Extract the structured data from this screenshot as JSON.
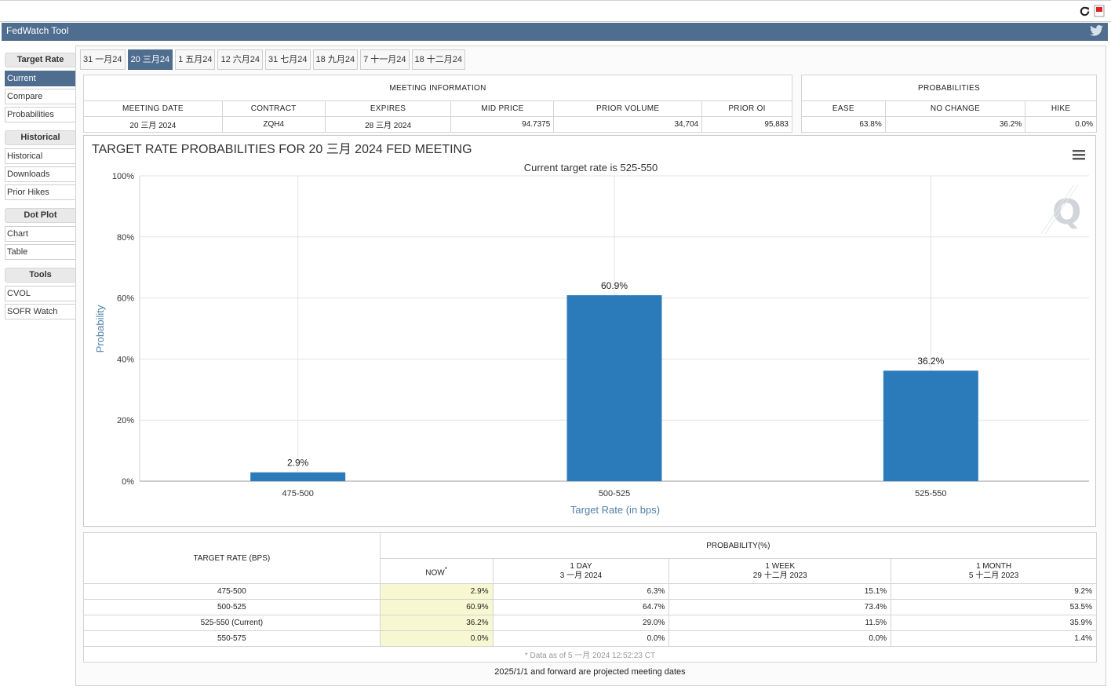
{
  "app": {
    "title": "FedWatch Tool"
  },
  "sidebar": [
    {
      "group": "Target Rate",
      "items": [
        {
          "label": "Current",
          "active": true
        },
        {
          "label": "Compare",
          "active": false
        },
        {
          "label": "Probabilities",
          "active": false
        }
      ]
    },
    {
      "group": "Historical",
      "items": [
        {
          "label": "Historical",
          "active": false
        },
        {
          "label": "Downloads",
          "active": false
        },
        {
          "label": "Prior Hikes",
          "active": false
        }
      ]
    },
    {
      "group": "Dot Plot",
      "items": [
        {
          "label": "Chart",
          "active": false
        },
        {
          "label": "Table",
          "active": false
        }
      ]
    },
    {
      "group": "Tools",
      "items": [
        {
          "label": "CVOL",
          "active": false
        },
        {
          "label": "SOFR Watch",
          "active": false
        }
      ]
    }
  ],
  "tabs": [
    {
      "label": "31 一月24",
      "active": false
    },
    {
      "label": "20 三月24",
      "active": true
    },
    {
      "label": "1 五月24",
      "active": false
    },
    {
      "label": "12 六月24",
      "active": false
    },
    {
      "label": "31 七月24",
      "active": false
    },
    {
      "label": "18 九月24",
      "active": false
    },
    {
      "label": "7 十一月24",
      "active": false
    },
    {
      "label": "18 十二月24",
      "active": false
    }
  ],
  "meeting_info": {
    "heading": "MEETING INFORMATION",
    "columns": [
      "MEETING DATE",
      "CONTRACT",
      "EXPIRES",
      "MID PRICE",
      "PRIOR VOLUME",
      "PRIOR OI"
    ],
    "values": [
      "20 三月 2024",
      "ZQH4",
      "28 三月 2024",
      "94.7375",
      "34,704",
      "95,883"
    ]
  },
  "probabilities": {
    "heading": "PROBABILITIES",
    "columns": [
      "EASE",
      "NO CHANGE",
      "HIKE"
    ],
    "values": [
      "63.8%",
      "36.2%",
      "0.0%"
    ]
  },
  "chart_data": {
    "type": "bar",
    "title": "TARGET RATE PROBABILITIES FOR 20 三月 2024 FED MEETING",
    "subtitle": "Current target rate is 525-550",
    "xlabel": "Target Rate (in bps)",
    "ylabel": "Probability",
    "categories": [
      "475-500",
      "500-525",
      "525-550"
    ],
    "values": [
      2.9,
      60.9,
      36.2
    ],
    "value_labels": [
      "2.9%",
      "60.9%",
      "36.2%"
    ],
    "ylim": [
      0,
      100
    ],
    "yticks": [
      0,
      20,
      40,
      60,
      80,
      100
    ],
    "ytick_labels": [
      "0%",
      "20%",
      "40%",
      "60%",
      "80%",
      "100%"
    ],
    "bar_color": "#2b7bba",
    "grid": true,
    "legend": "none"
  },
  "history": {
    "col_target": "TARGET RATE (BPS)",
    "col_prob": "PROBABILITY(%)",
    "subcols": [
      {
        "line1": "NOW",
        "mark": "*",
        "line2": ""
      },
      {
        "line1": "1 DAY",
        "line2": "3 一月 2024"
      },
      {
        "line1": "1 WEEK",
        "line2": "29 十二月 2023"
      },
      {
        "line1": "1 MONTH",
        "line2": "5 十二月 2023"
      }
    ],
    "rows": [
      {
        "rate": "475-500",
        "values": [
          "2.9%",
          "6.3%",
          "15.1%",
          "9.2%"
        ]
      },
      {
        "rate": "500-525",
        "values": [
          "60.9%",
          "64.7%",
          "73.4%",
          "53.5%"
        ]
      },
      {
        "rate": "525-550 (Current)",
        "values": [
          "36.2%",
          "29.0%",
          "11.5%",
          "35.9%"
        ]
      },
      {
        "rate": "550-575",
        "values": [
          "0.0%",
          "0.0%",
          "0.0%",
          "1.4%"
        ]
      }
    ],
    "footnote": "* Data as of 5 一月 2024 12:52:23 CT"
  },
  "bottom_note": "2025/1/1 and forward are projected meeting dates",
  "icons": {
    "refresh": "refresh-icon",
    "pdf": "pdf-icon",
    "twitter": "twitter-bird-icon",
    "menu": "hamburger-menu-icon",
    "watermark": "q-logo-icon"
  },
  "colors": {
    "header_bg": "#4f6d8f",
    "active_bg": "#4f6d8f",
    "bar": "#2b7bba",
    "now_highlight": "#f7f7d2"
  }
}
